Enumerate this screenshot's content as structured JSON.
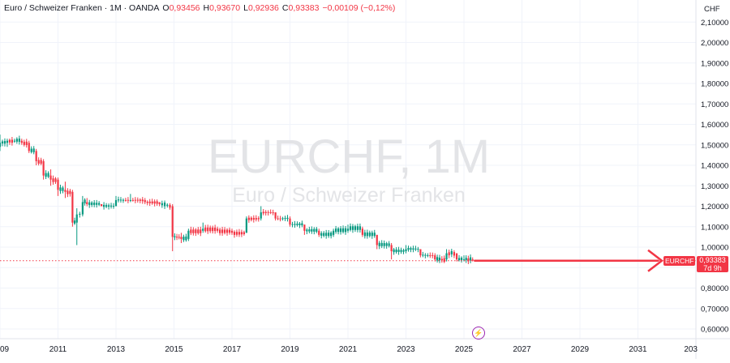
{
  "legend": {
    "symbol": "Euro / Schweizer Franken · 1M · OANDA",
    "open_label": "O",
    "open_value": "0,93456",
    "high_label": "H",
    "high_value": "0,93670",
    "low_label": "L",
    "low_value": "0,92936",
    "close_label": "C",
    "close_value": "0,93383",
    "change_value": "−0,00109 (−0,12%)"
  },
  "currency": "CHF",
  "watermark": {
    "ticker": "EURCHF, 1M",
    "name": "Euro / Schweizer Franken"
  },
  "price_tag": {
    "symbol": "EURCHF",
    "price": "0,93383",
    "countdown": "7d 9h"
  },
  "lightning_icon": "lightning-icon",
  "colors": {
    "up": "#089981",
    "down": "#f23645",
    "grid": "#f0f3fa",
    "text": "#131722",
    "arrow": "#f23645"
  },
  "chart_data": {
    "type": "candlestick",
    "title": "EURCHF, 1M",
    "subtitle": "Euro / Schweizer Franken",
    "y_label": "CHF",
    "ylim": [
      0.57,
      2.16
    ],
    "xlim": [
      2009.0,
      2033.0
    ],
    "y_ticks": [
      "0,60000",
      "0,70000",
      "0,80000",
      "0,90000",
      "1,00000",
      "1,10000",
      "1,20000",
      "1,30000",
      "1,40000",
      "1,50000",
      "1,60000",
      "1,70000",
      "1,80000",
      "1,90000",
      "2,00000",
      "2,10000"
    ],
    "y_tick_values": [
      0.6,
      0.7,
      0.8,
      0.9,
      1.0,
      1.1,
      1.2,
      1.3,
      1.4,
      1.5,
      1.6,
      1.7,
      1.8,
      1.9,
      2.0,
      2.1
    ],
    "x_ticks": [
      "09",
      "2011",
      "2013",
      "2015",
      "2017",
      "2019",
      "2021",
      "2023",
      "2025",
      "2027",
      "2029",
      "2031",
      "203"
    ],
    "x_tick_values": [
      2009.0,
      2011.0,
      2013.0,
      2015.0,
      2017.0,
      2019.0,
      2021.0,
      2023.0,
      2025.0,
      2027.0,
      2029.0,
      2031.0,
      2033.0
    ],
    "last_price": 0.93383,
    "series": [
      {
        "t": 2009.0,
        "o": 1.49,
        "h": 1.55,
        "l": 1.47,
        "c": 1.51
      },
      {
        "t": 2009.25,
        "o": 1.51,
        "h": 1.53,
        "l": 1.49,
        "c": 1.52
      },
      {
        "t": 2009.5,
        "o": 1.52,
        "h": 1.53,
        "l": 1.51,
        "c": 1.52
      },
      {
        "t": 2009.75,
        "o": 1.52,
        "h": 1.53,
        "l": 1.5,
        "c": 1.51
      },
      {
        "t": 2010.0,
        "o": 1.51,
        "h": 1.52,
        "l": 1.46,
        "c": 1.47
      },
      {
        "t": 2010.25,
        "o": 1.47,
        "h": 1.48,
        "l": 1.4,
        "c": 1.42
      },
      {
        "t": 2010.5,
        "o": 1.42,
        "h": 1.43,
        "l": 1.33,
        "c": 1.35
      },
      {
        "t": 2010.75,
        "o": 1.35,
        "h": 1.38,
        "l": 1.3,
        "c": 1.33
      },
      {
        "t": 2011.0,
        "o": 1.33,
        "h": 1.34,
        "l": 1.25,
        "c": 1.28
      },
      {
        "t": 2011.25,
        "o": 1.28,
        "h": 1.32,
        "l": 1.24,
        "c": 1.27
      },
      {
        "t": 2011.5,
        "o": 1.27,
        "h": 1.28,
        "l": 1.1,
        "c": 1.12
      },
      {
        "t": 2011.65,
        "o": 1.12,
        "h": 1.19,
        "l": 1.01,
        "c": 1.16
      },
      {
        "t": 2011.85,
        "o": 1.16,
        "h": 1.25,
        "l": 1.15,
        "c": 1.22
      },
      {
        "t": 2012.0,
        "o": 1.22,
        "h": 1.24,
        "l": 1.2,
        "c": 1.21
      },
      {
        "t": 2012.5,
        "o": 1.21,
        "h": 1.21,
        "l": 1.2,
        "c": 1.2
      },
      {
        "t": 2013.0,
        "o": 1.2,
        "h": 1.25,
        "l": 1.2,
        "c": 1.23
      },
      {
        "t": 2013.5,
        "o": 1.23,
        "h": 1.26,
        "l": 1.22,
        "c": 1.23
      },
      {
        "t": 2014.0,
        "o": 1.23,
        "h": 1.24,
        "l": 1.21,
        "c": 1.22
      },
      {
        "t": 2014.5,
        "o": 1.22,
        "h": 1.22,
        "l": 1.2,
        "c": 1.21
      },
      {
        "t": 2014.95,
        "o": 1.2,
        "h": 1.21,
        "l": 0.98,
        "c": 1.05
      },
      {
        "t": 2015.25,
        "o": 1.05,
        "h": 1.07,
        "l": 1.02,
        "c": 1.04
      },
      {
        "t": 2015.5,
        "o": 1.04,
        "h": 1.09,
        "l": 1.03,
        "c": 1.08
      },
      {
        "t": 2016.0,
        "o": 1.08,
        "h": 1.12,
        "l": 1.07,
        "c": 1.09
      },
      {
        "t": 2016.5,
        "o": 1.09,
        "h": 1.1,
        "l": 1.07,
        "c": 1.08
      },
      {
        "t": 2017.0,
        "o": 1.08,
        "h": 1.09,
        "l": 1.06,
        "c": 1.07
      },
      {
        "t": 2017.5,
        "o": 1.07,
        "h": 1.15,
        "l": 1.07,
        "c": 1.14
      },
      {
        "t": 2018.0,
        "o": 1.14,
        "h": 1.2,
        "l": 1.13,
        "c": 1.17
      },
      {
        "t": 2018.5,
        "o": 1.17,
        "h": 1.17,
        "l": 1.13,
        "c": 1.14
      },
      {
        "t": 2019.0,
        "o": 1.14,
        "h": 1.15,
        "l": 1.1,
        "c": 1.11
      },
      {
        "t": 2019.5,
        "o": 1.11,
        "h": 1.11,
        "l": 1.06,
        "c": 1.08
      },
      {
        "t": 2020.0,
        "o": 1.08,
        "h": 1.09,
        "l": 1.05,
        "c": 1.06
      },
      {
        "t": 2020.5,
        "o": 1.06,
        "h": 1.09,
        "l": 1.05,
        "c": 1.08
      },
      {
        "t": 2021.0,
        "o": 1.08,
        "h": 1.11,
        "l": 1.07,
        "c": 1.09
      },
      {
        "t": 2021.5,
        "o": 1.09,
        "h": 1.1,
        "l": 1.05,
        "c": 1.06
      },
      {
        "t": 2022.0,
        "o": 1.06,
        "h": 1.06,
        "l": 0.99,
        "c": 1.01
      },
      {
        "t": 2022.5,
        "o": 1.01,
        "h": 1.02,
        "l": 0.94,
        "c": 0.98
      },
      {
        "t": 2023.0,
        "o": 0.98,
        "h": 1.01,
        "l": 0.97,
        "c": 0.99
      },
      {
        "t": 2023.5,
        "o": 0.99,
        "h": 0.99,
        "l": 0.95,
        "c": 0.96
      },
      {
        "t": 2024.0,
        "o": 0.96,
        "h": 0.97,
        "l": 0.93,
        "c": 0.94
      },
      {
        "t": 2024.4,
        "o": 0.94,
        "h": 0.99,
        "l": 0.93,
        "c": 0.97
      },
      {
        "t": 2024.75,
        "o": 0.97,
        "h": 0.97,
        "l": 0.93,
        "c": 0.94
      },
      {
        "t": 2025.0,
        "o": 0.94,
        "h": 0.96,
        "l": 0.93,
        "c": 0.94
      },
      {
        "t": 2025.3,
        "o": 0.94,
        "h": 0.95,
        "l": 0.93,
        "c": 0.93383
      }
    ]
  }
}
